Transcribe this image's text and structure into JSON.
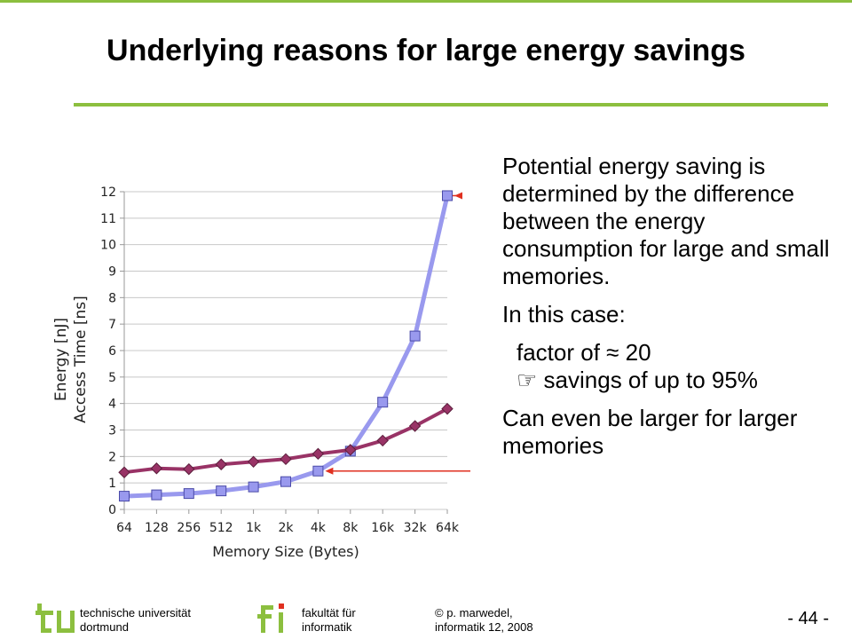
{
  "slide": {
    "title": "Underlying reasons for large energy savings",
    "paragraphs": {
      "p1": "Potential energy saving is determined by the difference between the energy consumption for large and small memories.",
      "p2": "In this case:",
      "p3": "factor of ≈ 20",
      "p4_icon": "☞",
      "p4": "savings of up to 95%",
      "p5": "Can even be larger for larger memories"
    }
  },
  "chart_data": {
    "type": "line",
    "categories": [
      "64",
      "128",
      "256",
      "512",
      "1k",
      "2k",
      "4k",
      "8k",
      "16k",
      "32k",
      "64k"
    ],
    "series": [
      {
        "values": [
          0.5,
          0.55,
          0.6,
          0.7,
          0.85,
          1.05,
          1.45,
          2.2,
          4.05,
          6.55,
          11.85
        ],
        "color": "#9999ee",
        "marker": "square"
      },
      {
        "values": [
          1.4,
          1.55,
          1.52,
          1.7,
          1.8,
          1.9,
          2.1,
          2.25,
          2.6,
          3.15,
          3.8
        ],
        "color": "#993366",
        "marker": "diamond"
      }
    ],
    "xlabel": "Memory Size (Bytes)",
    "ylabel_line1": "Energy [nJ]",
    "ylabel_line2": "Access Time [ns]",
    "ylim": [
      0,
      12
    ],
    "yticks": [
      "0",
      "1",
      "2",
      "3",
      "4",
      "5",
      "6",
      "7",
      "8",
      "9",
      "10",
      "11",
      "12"
    ],
    "grid": true,
    "arrow_color": "#e03020"
  },
  "footer": {
    "university_line1": "technische universität",
    "university_line2": "dortmund",
    "faculty_line1": "fakultät für",
    "faculty_line2": "informatik",
    "copyright_line1": "© p. marwedel,",
    "copyright_line2": "informatik 12,  2008",
    "page_number": "- 44 -",
    "logo_color": "#8cbf3f"
  }
}
